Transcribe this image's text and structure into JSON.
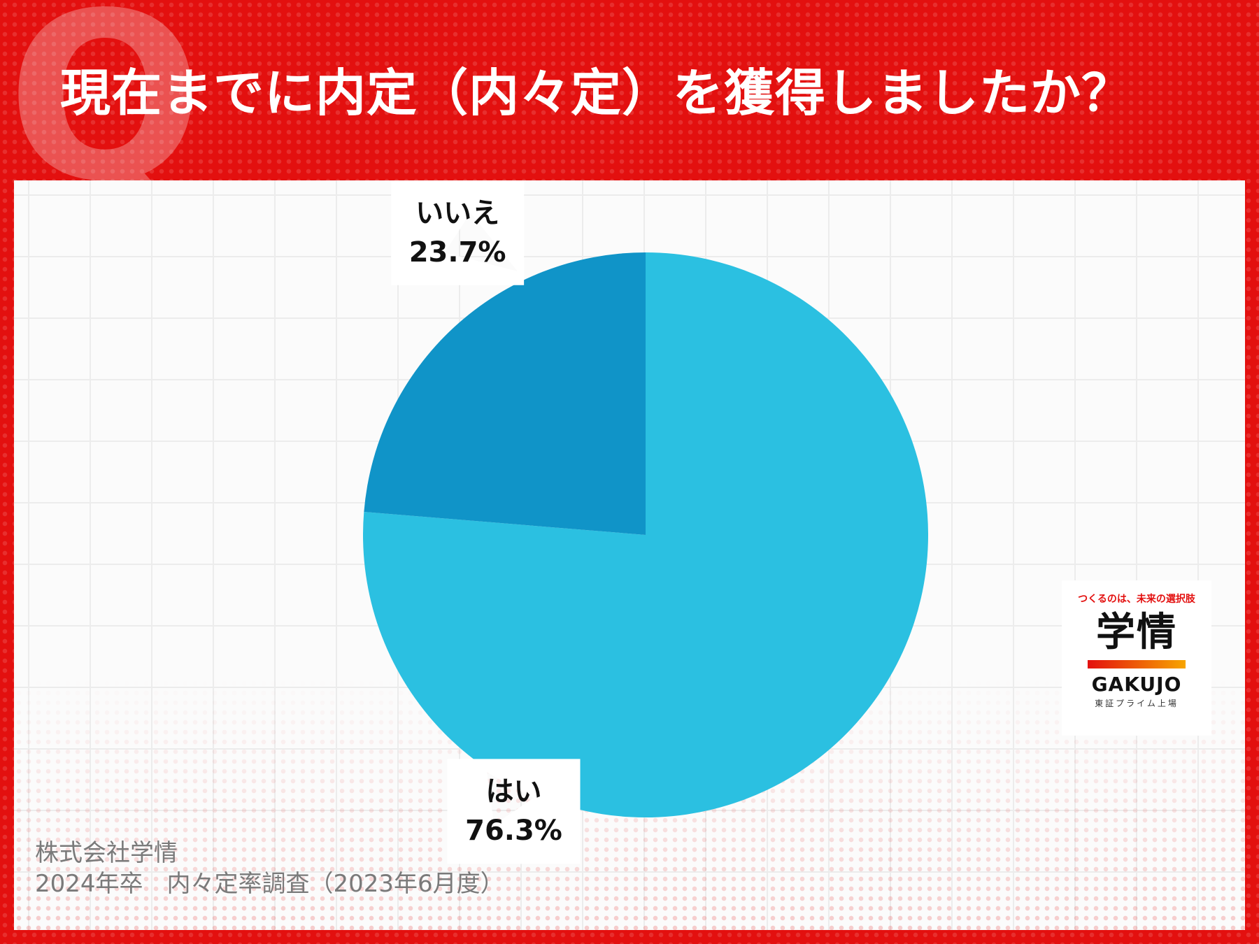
{
  "header": {
    "q_mark": "Q",
    "title": "現在までに内定（内々定）を獲得しましたか？"
  },
  "chart_data": {
    "type": "pie",
    "title": "現在までに内定（内々定）を獲得しましたか？",
    "unit": "%",
    "slices": [
      {
        "label": "はい",
        "value": 76.3,
        "value_label": "76.3%",
        "color": "#2bc0e1"
      },
      {
        "label": "いいえ",
        "value": 23.7,
        "value_label": "23.7%",
        "color": "#1094c8"
      }
    ],
    "start": "12 o'clock",
    "direction": "clockwise",
    "legend": "none"
  },
  "source": {
    "line1": "株式会社学情",
    "line2": "2024年卒　内々定率調査（2023年6月度）"
  },
  "logo": {
    "tagline": "つくるのは、未来の選択肢",
    "name_ja": "学情",
    "name_en": "GAKUJO",
    "listing": "東証プライム上場"
  },
  "colors": {
    "background_red": "#e3100f",
    "panel": "#fbfbfb",
    "grid": "#ececec"
  }
}
